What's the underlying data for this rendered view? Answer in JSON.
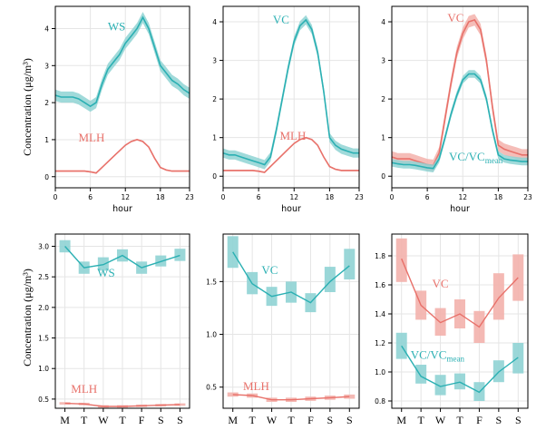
{
  "colors": {
    "teal": "#2bb0b3",
    "teal_band": "#8fd3d4",
    "salmon": "#e8716a",
    "salmon_band": "#f3b1ac",
    "gridline": "#e5e5e5",
    "axis": "#000000"
  },
  "shared_ylabel": "Concentration (μg/m³)",
  "chart_data": [
    {
      "type": "line",
      "panel": "top-left",
      "xlabel": "hour",
      "xlim": [
        0,
        23
      ],
      "xticks": [
        0,
        6,
        12,
        18,
        23
      ],
      "ylim": [
        -0.3,
        4.6
      ],
      "yticks": [
        0,
        1,
        2,
        3,
        4
      ],
      "x": [
        0,
        1,
        2,
        3,
        4,
        5,
        6,
        7,
        8,
        9,
        10,
        11,
        12,
        13,
        14,
        15,
        16,
        17,
        18,
        19,
        20,
        21,
        22,
        23
      ],
      "series": [
        {
          "name": "WS",
          "color": "teal",
          "band": 0.15,
          "values": [
            2.2,
            2.15,
            2.15,
            2.15,
            2.1,
            2.0,
            1.9,
            2.0,
            2.5,
            2.9,
            3.1,
            3.3,
            3.6,
            3.8,
            4.0,
            4.3,
            4.0,
            3.5,
            3.0,
            2.8,
            2.6,
            2.5,
            2.35,
            2.25
          ],
          "label": "WS",
          "label_x": 10.5,
          "label_y": 3.95
        },
        {
          "name": "MLH",
          "color": "salmon",
          "band": 0.02,
          "values": [
            0.15,
            0.15,
            0.15,
            0.15,
            0.15,
            0.15,
            0.13,
            0.1,
            0.25,
            0.4,
            0.55,
            0.7,
            0.85,
            0.95,
            1.0,
            0.95,
            0.8,
            0.5,
            0.25,
            0.18,
            0.15,
            0.15,
            0.15,
            0.15
          ],
          "label": "MLH",
          "label_x": 6.2,
          "label_y": 0.95
        }
      ]
    },
    {
      "type": "line",
      "panel": "top-middle",
      "xlabel": "hour",
      "xlim": [
        0,
        23
      ],
      "xticks": [
        0,
        6,
        12,
        18,
        23
      ],
      "ylim": [
        -0.3,
        4.4
      ],
      "yticks": [
        0,
        1,
        2,
        3,
        4
      ],
      "x": [
        0,
        1,
        2,
        3,
        4,
        5,
        6,
        7,
        8,
        9,
        10,
        11,
        12,
        13,
        14,
        15,
        16,
        17,
        18,
        19,
        20,
        21,
        22,
        23
      ],
      "series": [
        {
          "name": "VC",
          "color": "teal",
          "band": 0.12,
          "values": [
            0.6,
            0.55,
            0.55,
            0.5,
            0.45,
            0.4,
            0.35,
            0.3,
            0.5,
            1.2,
            2.0,
            2.8,
            3.5,
            3.9,
            4.05,
            3.8,
            3.2,
            2.2,
            1.0,
            0.8,
            0.7,
            0.65,
            0.6,
            0.6
          ],
          "label": "VC",
          "label_x": 9.8,
          "label_y": 3.95
        },
        {
          "name": "MLH",
          "color": "salmon",
          "band": 0.02,
          "values": [
            0.15,
            0.15,
            0.15,
            0.15,
            0.15,
            0.15,
            0.13,
            0.1,
            0.25,
            0.4,
            0.55,
            0.7,
            0.85,
            0.95,
            1.0,
            0.95,
            0.8,
            0.5,
            0.25,
            0.18,
            0.15,
            0.15,
            0.15,
            0.15
          ],
          "label": "MLH",
          "label_x": 11.8,
          "label_y": 0.95
        }
      ]
    },
    {
      "type": "line",
      "panel": "top-right",
      "xlabel": "hour",
      "xlim": [
        0,
        23
      ],
      "xticks": [
        0,
        6,
        12,
        18,
        23
      ],
      "ylim": [
        -0.3,
        4.4
      ],
      "yticks": [
        0,
        1,
        2,
        3,
        4
      ],
      "x": [
        0,
        1,
        2,
        3,
        4,
        5,
        6,
        7,
        8,
        9,
        10,
        11,
        12,
        13,
        14,
        15,
        16,
        17,
        18,
        19,
        20,
        21,
        22,
        23
      ],
      "series": [
        {
          "name": "VC",
          "color": "salmon",
          "band": 0.15,
          "values": [
            0.5,
            0.45,
            0.45,
            0.45,
            0.4,
            0.35,
            0.3,
            0.28,
            0.6,
            1.5,
            2.4,
            3.2,
            3.7,
            4.0,
            4.05,
            3.8,
            3.0,
            1.8,
            0.8,
            0.7,
            0.65,
            0.6,
            0.55,
            0.55
          ],
          "label": "VC",
          "label_x": 10.8,
          "label_y": 4.0
        },
        {
          "name": "VC/VCmean",
          "color": "teal",
          "band": 0.1,
          "values": [
            0.35,
            0.32,
            0.3,
            0.3,
            0.28,
            0.25,
            0.22,
            0.2,
            0.45,
            1.0,
            1.6,
            2.1,
            2.5,
            2.65,
            2.65,
            2.5,
            2.0,
            1.2,
            0.55,
            0.45,
            0.42,
            0.4,
            0.38,
            0.38
          ],
          "label": "VC/VC",
          "label_sub": "mean",
          "label_x": 14.2,
          "label_y": 0.4
        }
      ]
    },
    {
      "type": "line",
      "panel": "bottom-left",
      "categories": [
        "M",
        "T",
        "W",
        "T",
        "F",
        "S",
        "S"
      ],
      "ylim": [
        0.35,
        3.2
      ],
      "yticks": [
        0.5,
        1.0,
        1.5,
        2.0,
        2.5,
        3.0
      ],
      "ytick_labels": [
        "0.5",
        "1.0",
        "1.5",
        "2.0",
        "2.5",
        "3.0"
      ],
      "series": [
        {
          "name": "WS",
          "color": "teal",
          "values": [
            3.0,
            2.65,
            2.7,
            2.85,
            2.65,
            2.75,
            2.85
          ],
          "lower": [
            2.9,
            2.55,
            2.6,
            2.75,
            2.55,
            2.67,
            2.76
          ],
          "upper": [
            3.1,
            2.75,
            2.82,
            2.95,
            2.75,
            2.85,
            2.96
          ],
          "label": "WS",
          "label_x": 2.15,
          "label_y": 2.5
        },
        {
          "name": "MLH",
          "color": "salmon",
          "values": [
            0.43,
            0.42,
            0.38,
            0.38,
            0.39,
            0.4,
            0.41
          ],
          "lower": [
            0.41,
            0.4,
            0.36,
            0.36,
            0.37,
            0.38,
            0.39
          ],
          "upper": [
            0.45,
            0.44,
            0.4,
            0.4,
            0.41,
            0.42,
            0.43
          ],
          "label": "MLH",
          "label_x": 1.0,
          "label_y": 0.6
        }
      ]
    },
    {
      "type": "line",
      "panel": "bottom-middle",
      "categories": [
        "M",
        "T",
        "W",
        "T",
        "F",
        "S",
        "S"
      ],
      "ylim": [
        0.3,
        1.95
      ],
      "yticks": [
        0.5,
        1.0,
        1.5
      ],
      "ytick_labels": [
        "0.5",
        "1.0",
        "1.5"
      ],
      "series": [
        {
          "name": "VC",
          "color": "teal",
          "values": [
            1.78,
            1.48,
            1.36,
            1.4,
            1.3,
            1.5,
            1.65
          ],
          "lower": [
            1.63,
            1.38,
            1.27,
            1.3,
            1.21,
            1.4,
            1.52
          ],
          "upper": [
            1.93,
            1.59,
            1.45,
            1.5,
            1.39,
            1.64,
            1.81
          ],
          "label": "VC",
          "label_x": 1.9,
          "label_y": 1.57
        },
        {
          "name": "MLH",
          "color": "salmon",
          "values": [
            0.43,
            0.42,
            0.38,
            0.38,
            0.39,
            0.4,
            0.41
          ],
          "lower": [
            0.41,
            0.4,
            0.36,
            0.36,
            0.37,
            0.38,
            0.39
          ],
          "upper": [
            0.45,
            0.44,
            0.4,
            0.4,
            0.41,
            0.42,
            0.43
          ],
          "label": "MLH",
          "label_x": 1.2,
          "label_y": 0.47
        }
      ]
    },
    {
      "type": "line",
      "panel": "bottom-right",
      "categories": [
        "M",
        "T",
        "W",
        "T",
        "F",
        "S",
        "S"
      ],
      "ylim": [
        0.75,
        1.95
      ],
      "yticks": [
        0.8,
        1.0,
        1.2,
        1.4,
        1.6,
        1.8
      ],
      "ytick_labels": [
        "0.8",
        "1.0",
        "1.2",
        "1.4",
        "1.6",
        "1.8"
      ],
      "series": [
        {
          "name": "VC",
          "color": "salmon",
          "values": [
            1.78,
            1.46,
            1.34,
            1.4,
            1.31,
            1.51,
            1.65
          ],
          "lower": [
            1.62,
            1.36,
            1.25,
            1.3,
            1.2,
            1.36,
            1.49
          ],
          "upper": [
            1.92,
            1.56,
            1.44,
            1.5,
            1.42,
            1.68,
            1.81
          ],
          "label": "VC",
          "label_x": 2.0,
          "label_y": 1.58
        },
        {
          "name": "VC/VCmean",
          "color": "teal",
          "values": [
            1.18,
            0.97,
            0.9,
            0.93,
            0.86,
            1.0,
            1.1
          ],
          "lower": [
            1.09,
            0.92,
            0.84,
            0.88,
            0.8,
            0.93,
            0.99
          ],
          "upper": [
            1.27,
            1.05,
            0.98,
            0.99,
            0.93,
            1.08,
            1.2
          ],
          "label": "VC/VC",
          "label_sub": "mean",
          "label_x": 1.85,
          "label_y": 1.09
        }
      ]
    }
  ]
}
